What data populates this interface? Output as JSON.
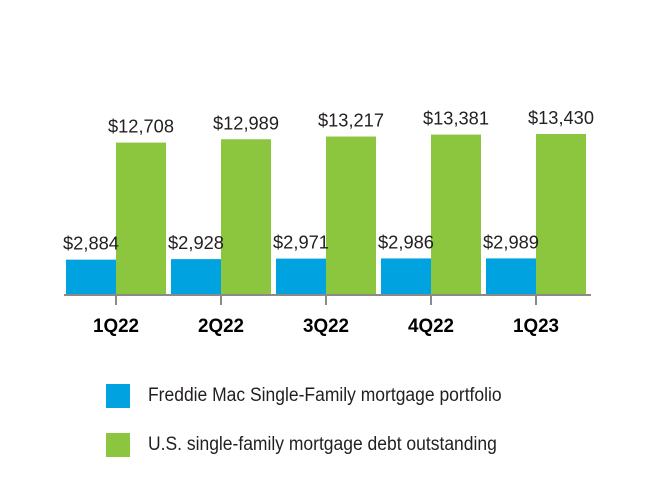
{
  "chart_data": {
    "type": "bar",
    "categories": [
      "1Q22",
      "2Q22",
      "3Q22",
      "4Q22",
      "1Q23"
    ],
    "series": [
      {
        "name": "Freddie Mac Single-Family mortgage portfolio",
        "values": [
          2884,
          2928,
          2971,
          2986,
          2989
        ],
        "labels": [
          "$2,884",
          "$2,928",
          "$2,971",
          "$2,986",
          "$2,989"
        ],
        "color": "#00a3e0"
      },
      {
        "name": "U.S. single-family mortgage debt outstanding",
        "values": [
          12708,
          12989,
          13217,
          13381,
          13430
        ],
        "labels": [
          "$12,708",
          "$12,989",
          "$13,217",
          "$13,381",
          "$13,430"
        ],
        "color": "#8cc63f"
      }
    ],
    "title": "",
    "xlabel": "",
    "ylabel": "",
    "legend_position": "bottom",
    "grid": false
  }
}
